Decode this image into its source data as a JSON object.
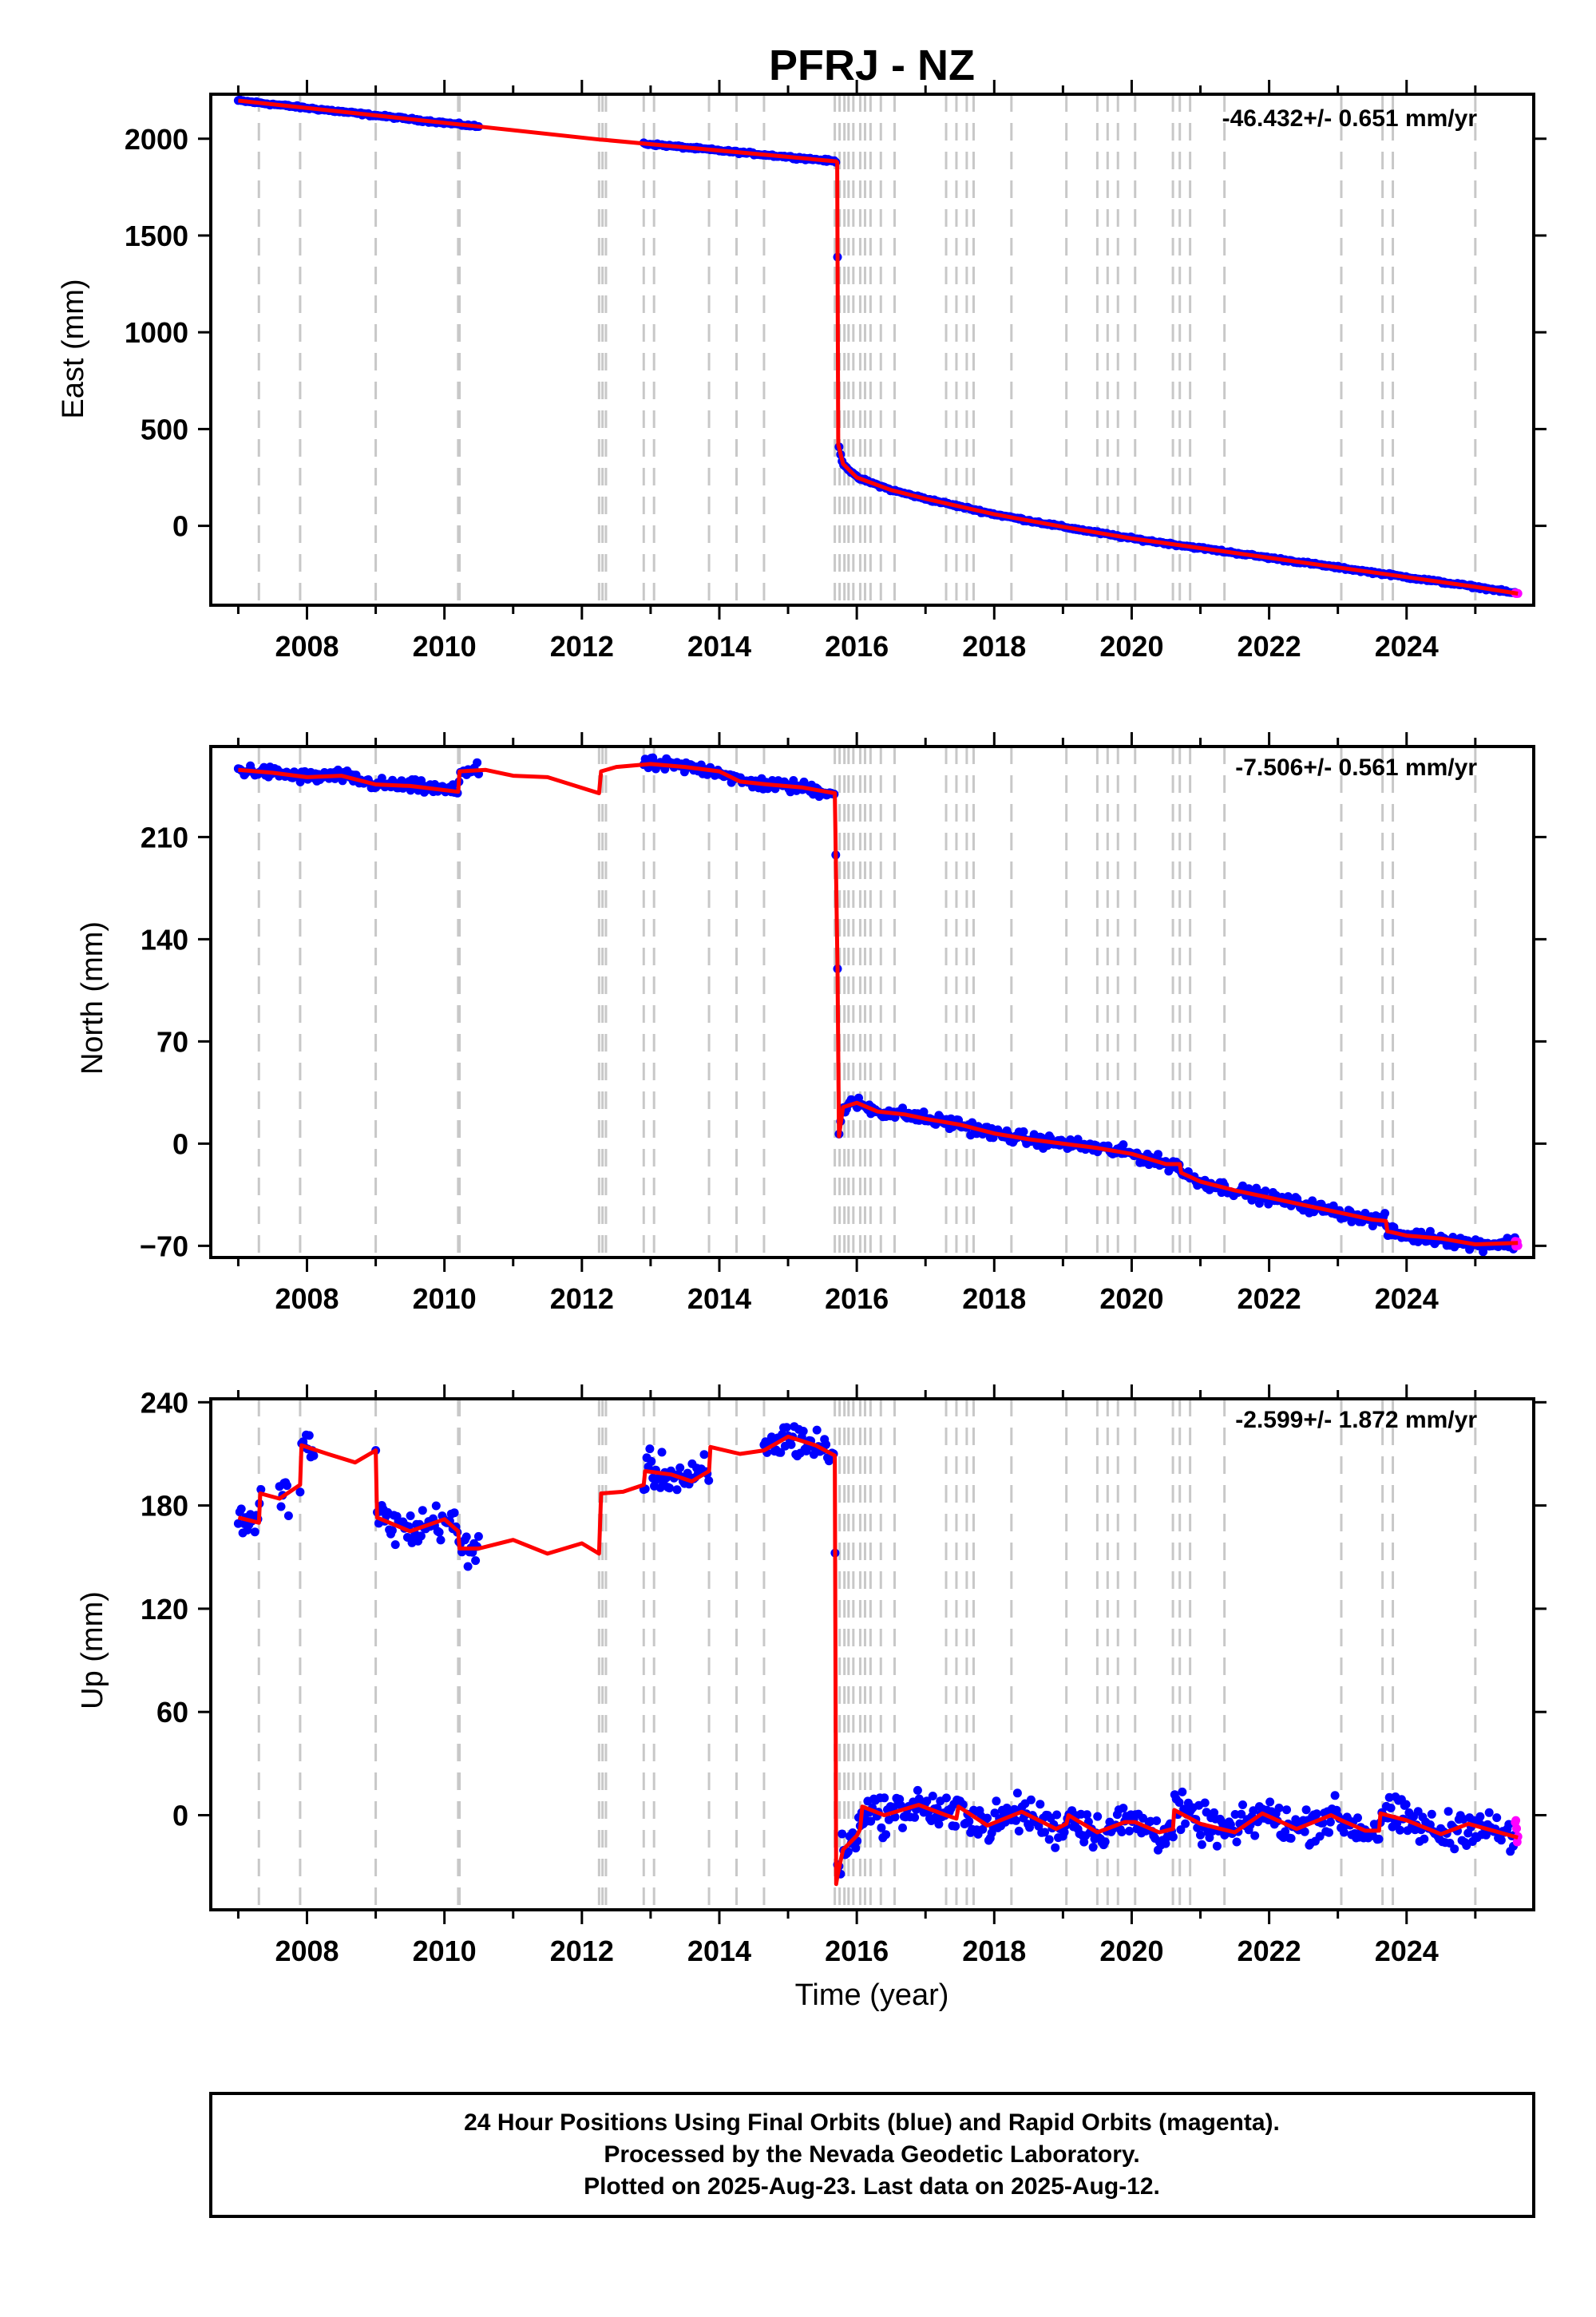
{
  "title": "PFRJ - NZ",
  "caption": {
    "line1": "24 Hour Positions Using Final Orbits (blue) and Rapid Orbits (magenta).",
    "line2": "Processed by the Nevada Geodetic Laboratory.",
    "line3": "Plotted on 2025-Aug-23. Last data on 2025-Aug-12."
  },
  "colors": {
    "final": "#0000ff",
    "rapid": "#ff00ff",
    "model": "#ff0000",
    "event": "#c8c8c8"
  },
  "chart_data": [
    {
      "type": "scatter",
      "ylabel": "East (mm)",
      "rate": "-46.432+/- 0.651 mm/yr",
      "xlim": [
        2006.6,
        2025.85
      ],
      "ylim": [
        -410,
        2230
      ],
      "yticks": [
        0,
        500,
        1000,
        1500,
        2000
      ],
      "xticks": [
        2008,
        2010,
        2012,
        2014,
        2016,
        2018,
        2020,
        2022,
        2024
      ],
      "data_segments": [
        [
          2007.0,
          2010.5
        ],
        [
          2012.9,
          2015.7
        ],
        [
          2015.72,
          2025.58
        ]
      ],
      "rapid_segment": [
        2025.58,
        2025.62
      ],
      "model": [
        [
          2007.0,
          2197
        ],
        [
          2012.25,
          1996
        ],
        [
          2012.3,
          1995
        ],
        [
          2015.7,
          1883
        ],
        [
          2015.715,
          1878
        ],
        [
          2015.73,
          420
        ],
        [
          2015.8,
          320
        ],
        [
          2016.0,
          250
        ],
        [
          2016.5,
          185
        ],
        [
          2017.0,
          140
        ],
        [
          2018.0,
          60
        ],
        [
          2019.0,
          -5
        ],
        [
          2020.0,
          -65
        ],
        [
          2021.0,
          -115
        ],
        [
          2022.0,
          -165
        ],
        [
          2023.0,
          -215
        ],
        [
          2024.0,
          -265
        ],
        [
          2025.0,
          -315
        ],
        [
          2025.62,
          -350
        ]
      ],
      "events": [
        2007.3,
        2007.9,
        2009.0,
        2010.2,
        2010.22,
        2012.25,
        2012.3,
        2012.35,
        2012.9,
        2013.05,
        2013.85,
        2014.25,
        2014.65,
        2015.68,
        2015.75,
        2015.82,
        2015.88,
        2015.95,
        2016.05,
        2016.12,
        2016.2,
        2016.35,
        2016.55,
        2017.3,
        2017.45,
        2017.6,
        2017.7,
        2018.25,
        2019.05,
        2019.5,
        2019.65,
        2019.8,
        2020.05,
        2020.6,
        2020.7,
        2020.85,
        2021.35,
        2023.05,
        2023.65,
        2023.8,
        2025.0
      ]
    },
    {
      "type": "scatter",
      "ylabel": "North (mm)",
      "rate": "-7.506+/- 0.561 mm/yr",
      "xlim": [
        2006.6,
        2025.85
      ],
      "ylim": [
        -78,
        272
      ],
      "yticks": [
        -70,
        0,
        70,
        140,
        210
      ],
      "ytick_labels": [
        "−70",
        "0",
        "70",
        "140",
        "210"
      ],
      "xticks": [
        2008,
        2010,
        2012,
        2014,
        2016,
        2018,
        2020,
        2022,
        2024
      ],
      "data_segments": [
        [
          2007.0,
          2010.5
        ],
        [
          2012.9,
          2015.7
        ],
        [
          2015.72,
          2025.58
        ]
      ],
      "rapid_segment": [
        2025.58,
        2025.62
      ],
      "model": [
        [
          2007.0,
          256
        ],
        [
          2007.5,
          254
        ],
        [
          2008.0,
          251
        ],
        [
          2008.5,
          252
        ],
        [
          2009.0,
          246
        ],
        [
          2009.5,
          245
        ],
        [
          2010.2,
          241
        ],
        [
          2010.22,
          255
        ],
        [
          2010.6,
          256
        ],
        [
          2011.0,
          252
        ],
        [
          2011.5,
          251
        ],
        [
          2012.25,
          240
        ],
        [
          2012.28,
          255
        ],
        [
          2012.5,
          258
        ],
        [
          2013.0,
          260
        ],
        [
          2013.5,
          258
        ],
        [
          2014.0,
          255
        ],
        [
          2014.3,
          248
        ],
        [
          2014.7,
          246
        ],
        [
          2015.2,
          244
        ],
        [
          2015.68,
          240
        ],
        [
          2015.72,
          120
        ],
        [
          2015.74,
          5
        ],
        [
          2015.8,
          25
        ],
        [
          2016.0,
          28
        ],
        [
          2016.3,
          22
        ],
        [
          2016.7,
          20
        ],
        [
          2017.0,
          17
        ],
        [
          2017.5,
          13
        ],
        [
          2018.0,
          7
        ],
        [
          2018.5,
          3
        ],
        [
          2019.0,
          0
        ],
        [
          2019.5,
          -3
        ],
        [
          2020.0,
          -7
        ],
        [
          2020.5,
          -14
        ],
        [
          2020.7,
          -14
        ],
        [
          2020.72,
          -20
        ],
        [
          2021.0,
          -26
        ],
        [
          2021.5,
          -32
        ],
        [
          2022.0,
          -37
        ],
        [
          2022.5,
          -42
        ],
        [
          2023.0,
          -47
        ],
        [
          2023.5,
          -52
        ],
        [
          2023.7,
          -53
        ],
        [
          2023.72,
          -60
        ],
        [
          2024.0,
          -63
        ],
        [
          2024.5,
          -65
        ],
        [
          2025.0,
          -69
        ],
        [
          2025.62,
          -68
        ]
      ],
      "events": [
        2007.3,
        2007.9,
        2009.0,
        2010.2,
        2010.22,
        2012.25,
        2012.3,
        2012.35,
        2012.9,
        2013.05,
        2013.85,
        2014.25,
        2014.65,
        2015.68,
        2015.75,
        2015.82,
        2015.88,
        2015.95,
        2016.05,
        2016.12,
        2016.2,
        2016.35,
        2016.55,
        2017.3,
        2017.45,
        2017.6,
        2017.7,
        2018.25,
        2019.05,
        2019.5,
        2019.65,
        2019.8,
        2020.05,
        2020.6,
        2020.7,
        2020.85,
        2021.35,
        2023.05,
        2023.65,
        2023.8,
        2025.0
      ]
    },
    {
      "type": "scatter",
      "ylabel": "Up (mm)",
      "xlabel": "Time (year)",
      "rate": "-2.599+/- 1.872 mm/yr",
      "xlim": [
        2006.6,
        2025.85
      ],
      "ylim": [
        -55,
        242
      ],
      "yticks": [
        0,
        60,
        120,
        180,
        240
      ],
      "xticks": [
        2008,
        2010,
        2012,
        2014,
        2016,
        2018,
        2020,
        2022,
        2024
      ],
      "data_segments": [
        [
          2007.0,
          2007.35
        ],
        [
          2007.6,
          2007.75
        ],
        [
          2007.9,
          2008.1
        ],
        [
          2009.0,
          2010.5
        ],
        [
          2012.9,
          2013.85
        ],
        [
          2014.65,
          2015.7
        ],
        [
          2015.72,
          2025.58
        ]
      ],
      "rapid_segment": [
        2025.58,
        2025.62
      ],
      "model": [
        [
          2007.0,
          173
        ],
        [
          2007.3,
          170
        ],
        [
          2007.32,
          187
        ],
        [
          2007.6,
          184
        ],
        [
          2007.9,
          192
        ],
        [
          2007.92,
          215
        ],
        [
          2008.3,
          210
        ],
        [
          2008.7,
          205
        ],
        [
          2009.0,
          212
        ],
        [
          2009.02,
          173
        ],
        [
          2009.5,
          165
        ],
        [
          2010.0,
          172
        ],
        [
          2010.2,
          165
        ],
        [
          2010.22,
          155
        ],
        [
          2010.5,
          155
        ],
        [
          2011.0,
          160
        ],
        [
          2011.5,
          152
        ],
        [
          2012.0,
          158
        ],
        [
          2012.25,
          152
        ],
        [
          2012.28,
          187
        ],
        [
          2012.6,
          188
        ],
        [
          2012.9,
          192
        ],
        [
          2012.92,
          200
        ],
        [
          2013.3,
          198
        ],
        [
          2013.6,
          194
        ],
        [
          2013.85,
          200
        ],
        [
          2013.87,
          214
        ],
        [
          2014.3,
          210
        ],
        [
          2014.65,
          212
        ],
        [
          2015.0,
          220
        ],
        [
          2015.4,
          215
        ],
        [
          2015.68,
          209
        ],
        [
          2015.7,
          -40
        ],
        [
          2015.72,
          -35
        ],
        [
          2015.8,
          -20
        ],
        [
          2016.0,
          -12
        ],
        [
          2016.05,
          -8
        ],
        [
          2016.08,
          5
        ],
        [
          2016.4,
          0
        ],
        [
          2016.9,
          6
        ],
        [
          2017.3,
          0
        ],
        [
          2017.45,
          -2
        ],
        [
          2017.48,
          5
        ],
        [
          2017.9,
          -6
        ],
        [
          2018.4,
          2
        ],
        [
          2018.9,
          -8
        ],
        [
          2019.05,
          -5
        ],
        [
          2019.08,
          0
        ],
        [
          2019.5,
          -10
        ],
        [
          2019.9,
          -4
        ],
        [
          2020.05,
          -4
        ],
        [
          2020.4,
          -10
        ],
        [
          2020.6,
          -8
        ],
        [
          2020.62,
          3
        ],
        [
          2021.0,
          -5
        ],
        [
          2021.5,
          -10
        ],
        [
          2021.9,
          1
        ],
        [
          2022.4,
          -8
        ],
        [
          2022.9,
          0
        ],
        [
          2023.05,
          -3
        ],
        [
          2023.4,
          -9
        ],
        [
          2023.6,
          -9
        ],
        [
          2023.62,
          1
        ],
        [
          2024.0,
          -3
        ],
        [
          2024.5,
          -11
        ],
        [
          2024.9,
          -5
        ],
        [
          2025.62,
          -13
        ]
      ],
      "events": [
        2007.3,
        2007.9,
        2009.0,
        2010.2,
        2010.22,
        2012.25,
        2012.3,
        2012.35,
        2012.9,
        2013.05,
        2013.85,
        2014.25,
        2014.65,
        2015.68,
        2015.75,
        2015.82,
        2015.88,
        2015.95,
        2016.05,
        2016.12,
        2016.2,
        2016.35,
        2016.55,
        2017.3,
        2017.45,
        2017.6,
        2017.7,
        2018.25,
        2019.05,
        2019.5,
        2019.65,
        2019.8,
        2020.05,
        2020.6,
        2020.7,
        2020.85,
        2021.35,
        2023.05,
        2023.65,
        2023.8,
        2025.0
      ]
    }
  ]
}
